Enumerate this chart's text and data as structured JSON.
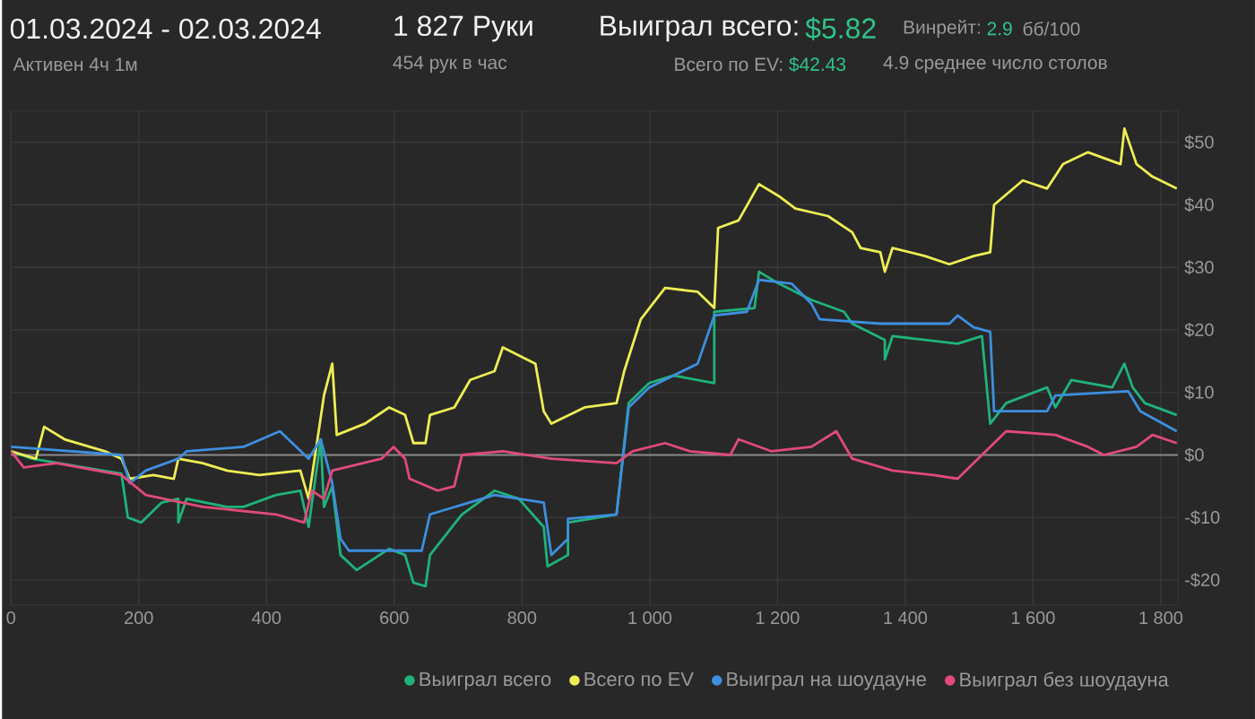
{
  "chart_data": {
    "type": "line",
    "title": "01.03.2024 - 02.03.2024",
    "annotations": [
      "Активен 4ч 1м",
      "1 827 Руки",
      "454 рук в час",
      "Выиграл всего:",
      "$5.82",
      "Всего по EV:",
      "$42.43",
      "Винрейт:",
      "2.9",
      "бб/100",
      "4.9 среднее число столов"
    ],
    "xlim": [
      0,
      1827
    ],
    "ylim": [
      -24,
      55
    ],
    "xticks": [
      0,
      200,
      400,
      600,
      800,
      {
        "value": 1000,
        "label": "1 000"
      },
      {
        "value": 1200,
        "label": "1 200"
      },
      {
        "value": 1400,
        "label": "1 400"
      },
      {
        "value": 1600,
        "label": "1 600"
      },
      {
        "value": 1800,
        "label": "1 800"
      }
    ],
    "yticks": [
      {
        "value": -20,
        "label": "-$20"
      },
      {
        "value": -10,
        "label": "-$10"
      },
      {
        "value": 0,
        "label": "$0"
      },
      {
        "value": 10,
        "label": "$10"
      },
      {
        "value": 20,
        "label": "$20"
      },
      {
        "value": 30,
        "label": "$30"
      },
      {
        "value": 40,
        "label": "$40"
      },
      {
        "value": 50,
        "label": "$50"
      }
    ],
    "grid": true,
    "legend": "bottom right",
    "marker": "none",
    "line_style": "solid",
    "ref_lines": [
      {
        "axis": "y",
        "value": 0,
        "color": "#8a8a8a"
      }
    ],
    "series": [
      {
        "name": "Выиграл всего",
        "color": "#1fb37a",
        "x": [
          0,
          33,
          109,
          173,
          183,
          204,
          236,
          262,
          262,
          275,
          338,
          364,
          415,
          453,
          466,
          485,
          490,
          503,
          516,
          541,
          592,
          617,
          630,
          649,
          656,
          706,
          757,
          795,
          834,
          840,
          872,
          872,
          948,
          967,
          999,
          1037,
          1101,
          1101,
          1164,
          1171,
          1202,
          1253,
          1304,
          1317,
          1368,
          1368,
          1380,
          1431,
          1482,
          1520,
          1533,
          1558,
          1622,
          1635,
          1660,
          1724,
          1743,
          1756,
          1775,
          1825
        ],
        "values": [
          0.6,
          -0.6,
          null,
          -3,
          -10,
          -10.8,
          -7.6,
          -7,
          -10.8,
          -7,
          -8.3,
          -8.3,
          -6.4,
          -5.7,
          -11.5,
          2.5,
          -8.3,
          -5,
          -16,
          -18.4,
          -15,
          -16,
          -20.4,
          -21,
          -16,
          -9.5,
          -5.7,
          -7,
          -11.5,
          -17.8,
          -16,
          -10.8,
          -9.5,
          8.3,
          11.5,
          12.7,
          11.5,
          22.9,
          23.5,
          29.3,
          27.4,
          24.8,
          22.9,
          21,
          18.4,
          15.3,
          19,
          18.4,
          17.8,
          19,
          5,
          8.3,
          10.8,
          7.6,
          12,
          10.8,
          14.6,
          10.8,
          8.3,
          6.4
        ]
      },
      {
        "name": "Всего по EV",
        "color": "#eeee55",
        "x": [
          0,
          39,
          52,
          84,
          147,
          173,
          186,
          223,
          255,
          262,
          300,
          338,
          389,
          453,
          466,
          490,
          503,
          510,
          554,
          592,
          617,
          630,
          649,
          656,
          694,
          719,
          757,
          770,
          821,
          834,
          846,
          898,
          948,
          960,
          986,
          1024,
          1075,
          1101,
          1107,
          1139,
          1171,
          1202,
          1228,
          1279,
          1317,
          1330,
          1361,
          1368,
          1380,
          1431,
          1469,
          1507,
          1533,
          1539,
          1584,
          1622,
          1647,
          1686,
          1737,
          1743,
          1762,
          1787,
          1825
        ],
        "values": [
          0.6,
          -0.6,
          4.5,
          2.5,
          0.6,
          -0.6,
          -3.8,
          -3.2,
          -3.8,
          -0.6,
          -1.3,
          -2.5,
          -3.2,
          -2.5,
          -7,
          9.5,
          14.6,
          3.2,
          5,
          7.6,
          6.4,
          1.9,
          1.9,
          6.4,
          7.6,
          12,
          13.4,
          17.2,
          14.6,
          7,
          5,
          7.6,
          8.3,
          13.4,
          21.7,
          26.7,
          26.1,
          23.5,
          36.3,
          37.5,
          43.3,
          41.4,
          39.4,
          38.2,
          35.6,
          33.1,
          32.4,
          29.3,
          33.1,
          31.8,
          30.5,
          31.8,
          32.4,
          40,
          43.9,
          42.6,
          46.5,
          48.4,
          46.5,
          52.2,
          46.5,
          44.5,
          42.6
        ]
      },
      {
        "name": "Выиграл на шоудауне",
        "color": "#3d8fe0",
        "x": [
          0,
          173,
          186,
          211,
          262,
          275,
          364,
          421,
          466,
          485,
          503,
          516,
          529,
          643,
          656,
          757,
          795,
          834,
          846,
          872,
          872,
          948,
          967,
          999,
          1075,
          1101,
          1152,
          1171,
          1222,
          1253,
          1266,
          1361,
          1469,
          1482,
          1507,
          1533,
          1539,
          1622,
          1635,
          1749,
          1768,
          1825
        ],
        "values": [
          1.3,
          0,
          -4.5,
          -2.5,
          -0.6,
          0.6,
          1.3,
          3.8,
          -0.6,
          2.5,
          -4.5,
          -13.4,
          -15.3,
          -15.3,
          -9.5,
          -6.4,
          -7,
          -7.6,
          -16,
          -13.4,
          -10.2,
          -9.5,
          7.6,
          10.8,
          14.6,
          22.3,
          22.9,
          28,
          27.4,
          24.2,
          21.7,
          21,
          21,
          22.3,
          20.4,
          19.7,
          7,
          7,
          9.5,
          10.2,
          7,
          3.8
        ]
      },
      {
        "name": "Выиграл без шоудауна",
        "color": "#e04a7a",
        "x": [
          0,
          20,
          71,
          173,
          211,
          300,
          415,
          459,
          471,
          490,
          503,
          580,
          599,
          617,
          624,
          668,
          694,
          706,
          770,
          846,
          948,
          973,
          1024,
          1063,
          1126,
          1139,
          1190,
          1253,
          1292,
          1317,
          1380,
          1444,
          1482,
          1507,
          1558,
          1635,
          1686,
          1711,
          1762,
          1787,
          1825
        ],
        "values": [
          0.6,
          -2,
          -1.3,
          -3.2,
          -6.4,
          -8.3,
          -9.5,
          -10.8,
          -5.7,
          -7,
          -2.5,
          -0.6,
          1.3,
          -0.6,
          -3.8,
          -5.7,
          -5,
          0,
          0.6,
          -0.6,
          -1.3,
          0.6,
          1.9,
          0.6,
          0,
          2.5,
          0.6,
          1.3,
          3.8,
          -0.6,
          -2.5,
          -3.2,
          -3.8,
          -1.3,
          3.8,
          3.2,
          1.3,
          0,
          1.3,
          3.2,
          1.9
        ]
      }
    ]
  }
}
